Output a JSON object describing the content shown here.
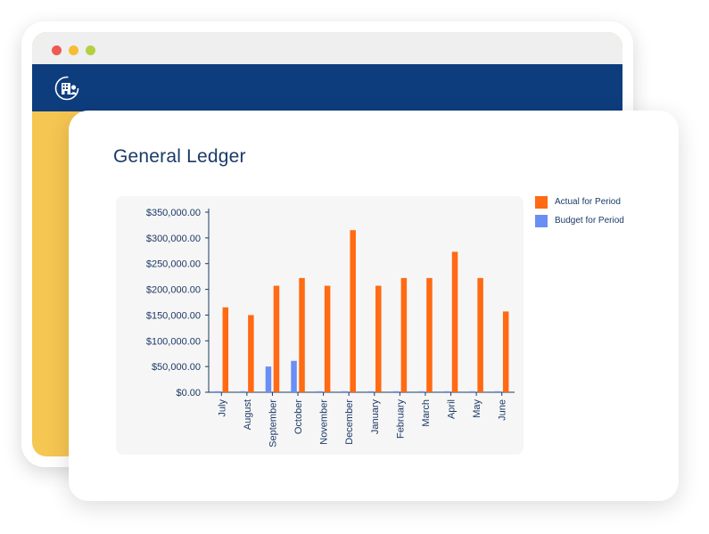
{
  "window": {
    "traffic_lights": {
      "red": "#ee5a52",
      "yellow": "#f5be33",
      "green": "#b3d13f"
    },
    "header_color": "#0e3d7e",
    "background_color": "#f6c652",
    "logo_icon": "building-user-icon"
  },
  "page": {
    "title": "General Ledger"
  },
  "chart_data": {
    "type": "bar",
    "categories": [
      "July",
      "August",
      "September",
      "October",
      "November",
      "December",
      "January",
      "February",
      "March",
      "April",
      "May",
      "June"
    ],
    "series": [
      {
        "name": "Actual for Period",
        "color": "#ff6a13",
        "values": [
          165000,
          150000,
          207000,
          222000,
          207000,
          315000,
          207000,
          222000,
          222000,
          273000,
          222000,
          157000
        ]
      },
      {
        "name": "Budget for Period",
        "color": "#6b8ef5",
        "values": [
          2000,
          2000,
          50000,
          61000,
          2000,
          2000,
          2000,
          2000,
          2000,
          2000,
          2000,
          2000
        ]
      }
    ],
    "yticks": [
      "$0.00",
      "$50,000.00",
      "$100,000.00",
      "$150,000.00",
      "$200,000.00",
      "$250,000.00",
      "$300,000.00",
      "$350,000.00"
    ],
    "ylim": [
      0,
      350000
    ],
    "legend_position": "right",
    "grid": false
  }
}
